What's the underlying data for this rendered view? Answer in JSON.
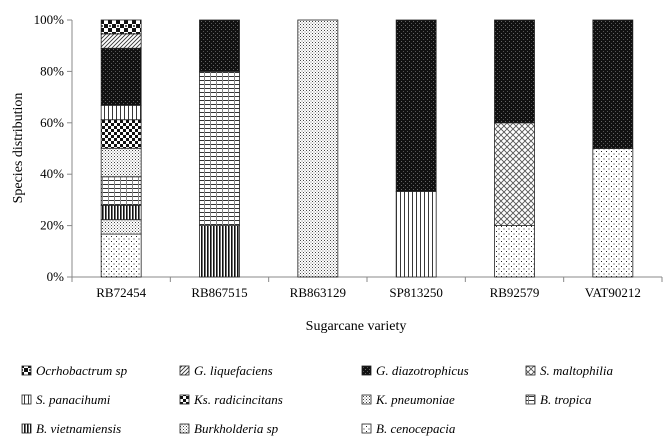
{
  "chart_data": {
    "type": "bar",
    "stacked": true,
    "percent_stacked": true,
    "categories": [
      "RB72454",
      "RB867515",
      "RB863129",
      "SP813250",
      "RB92579",
      "VAT90212"
    ],
    "xlabel": "Sugarcane variety",
    "ylabel": "Species distribution",
    "ylim": [
      0,
      100
    ],
    "yticks": [
      "0%",
      "20%",
      "40%",
      "60%",
      "80%",
      "100%"
    ],
    "legend_position": "bottom",
    "grid": false,
    "series": [
      {
        "name": "B. cenocepacia",
        "pattern": "dots-sparse",
        "values": [
          16.7,
          0,
          0,
          0,
          20,
          50
        ]
      },
      {
        "name": "Burkholderia sp",
        "pattern": "dots-fine",
        "values": [
          5.6,
          0,
          0,
          0,
          0,
          0
        ]
      },
      {
        "name": "B. vietnamiensis",
        "pattern": "vertical-bold",
        "values": [
          5.6,
          20,
          0,
          0,
          0,
          0
        ]
      },
      {
        "name": "B. tropica",
        "pattern": "grid",
        "values": [
          11.1,
          60,
          0,
          0,
          0,
          0
        ]
      },
      {
        "name": "K. pneumoniae",
        "pattern": "dots-fine",
        "values": [
          11.1,
          0,
          100,
          0,
          0,
          0
        ]
      },
      {
        "name": "Ks. radicincitans",
        "pattern": "checker",
        "values": [
          11.1,
          0,
          0,
          0,
          0,
          0
        ]
      },
      {
        "name": "S. panacihumi",
        "pattern": "vertical-fine",
        "values": [
          5.6,
          0,
          0,
          33.3,
          0,
          0
        ]
      },
      {
        "name": "S. maltophilia",
        "pattern": "diamond",
        "values": [
          0,
          0,
          0,
          0,
          40,
          0
        ]
      },
      {
        "name": "G. diazotrophicus",
        "pattern": "dense-dark",
        "values": [
          22.2,
          20,
          0,
          66.7,
          40,
          50
        ]
      },
      {
        "name": "G. liquefaciens",
        "pattern": "diagonal",
        "values": [
          5.6,
          0,
          0,
          0,
          0,
          0
        ]
      },
      {
        "name": "Ocrhobactrum sp",
        "pattern": "checker-bold",
        "values": [
          5.4,
          0,
          0,
          0,
          0,
          0
        ]
      }
    ],
    "legend_order": [
      "Ocrhobactrum sp",
      "G. liquefaciens",
      "G. diazotrophicus",
      "S. maltophilia",
      "S. panacihumi",
      "Ks. radicincitans",
      "K. pneumoniae",
      "B. tropica",
      "B. vietnamiensis",
      "Burkholderia sp",
      "B. cenocepacia"
    ]
  }
}
